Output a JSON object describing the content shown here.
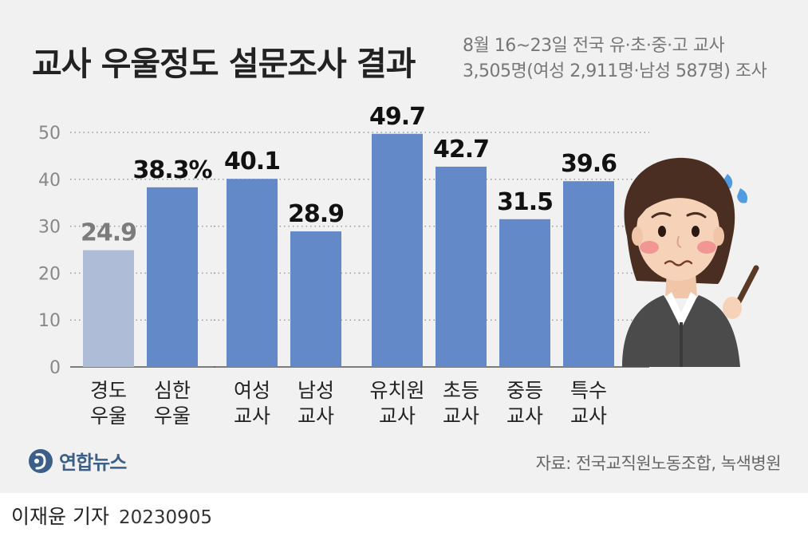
{
  "header": {
    "title": "교사 우울정도 설문조사 결과",
    "subtitle_line1": "8월 16~23일 전국 유·초·중·고 교사",
    "subtitle_line2": "3,505명(여성 2,911명·남성 587명) 조사"
  },
  "chart_data": {
    "type": "bar",
    "title": "교사 우울정도 설문조사 결과",
    "xlabel": "",
    "ylabel": "",
    "ylim": [
      0,
      50
    ],
    "yticks": [
      0,
      10,
      20,
      30,
      40,
      50
    ],
    "grid": true,
    "groups": [
      {
        "categories": [
          [
            "경도",
            "우울"
          ],
          [
            "심한",
            "우울"
          ]
        ],
        "values": [
          24.9,
          38.3
        ],
        "labels": [
          "24.9",
          "38.3%"
        ],
        "colors": [
          "#aebcd8",
          "#6389c9"
        ],
        "label_colors": [
          "#7c7c7c",
          "#111111"
        ]
      },
      {
        "categories": [
          [
            "여성",
            "교사"
          ],
          [
            "남성",
            "교사"
          ]
        ],
        "values": [
          40.1,
          28.9
        ],
        "labels": [
          "40.1",
          "28.9"
        ],
        "colors": [
          "#6389c9",
          "#6389c9"
        ],
        "label_colors": [
          "#111111",
          "#111111"
        ]
      },
      {
        "categories": [
          [
            "유치원",
            "교사"
          ],
          [
            "초등",
            "교사"
          ],
          [
            "중등",
            "교사"
          ],
          [
            "특수",
            "교사"
          ]
        ],
        "values": [
          49.7,
          42.7,
          31.5,
          39.6
        ],
        "labels": [
          "49.7",
          "42.7",
          "31.5",
          "39.6"
        ],
        "colors": [
          "#6389c9",
          "#6389c9",
          "#6389c9",
          "#6389c9"
        ],
        "label_colors": [
          "#111111",
          "#111111",
          "#111111",
          "#111111"
        ]
      }
    ]
  },
  "illustration": {
    "icon": "worried-teacher-icon",
    "colors": {
      "hair": "#4a2e22",
      "skin": "#f6d2b8",
      "jacket": "#4b4b4b"
    }
  },
  "brand": {
    "name": "연합뉴스",
    "icon": "yonhap-logo-icon",
    "color": "#3b5f8a"
  },
  "source": "자료: 전국교직원노동조합, 녹색병원",
  "footer": {
    "reporter": "이재윤 기자",
    "date": "20230905"
  }
}
